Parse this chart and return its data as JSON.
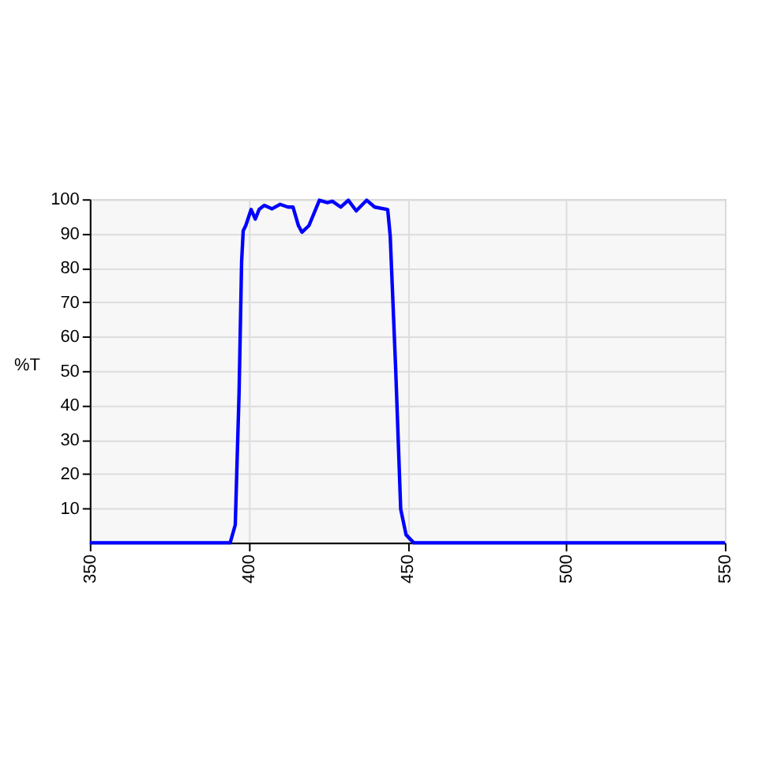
{
  "chart_data": {
    "type": "line",
    "ylabel": "%T",
    "x": [
      350,
      394.2,
      395.8,
      397,
      397.8,
      398.3,
      399.1,
      400.8,
      402.1,
      403.3,
      404.9,
      407.4,
      409.9,
      412.4,
      414,
      415.7,
      416.8,
      419,
      422.3,
      424.8,
      426.4,
      429,
      431.4,
      433.9,
      437.2,
      439.7,
      443.8,
      444.6,
      446.3,
      447.9,
      449.6,
      452,
      550
    ],
    "series": [
      {
        "color": "#0000ff",
        "values": [
          0,
          0,
          5.2,
          43.6,
          81.7,
          90.8,
          92.3,
          97,
          94.2,
          97,
          98.2,
          97.2,
          98.5,
          97.7,
          97.7,
          92.3,
          90.4,
          92.3,
          99.7,
          99,
          99.4,
          97.7,
          99.7,
          96.6,
          99.7,
          97.7,
          97,
          89.3,
          51,
          9.8,
          2.3,
          0,
          0
        ]
      }
    ],
    "xlim": [
      350,
      550
    ],
    "xticks": [
      350,
      400,
      450,
      500,
      550
    ],
    "ylim": [
      0,
      100
    ],
    "yticks": [
      10,
      20,
      30,
      40,
      50,
      60,
      70,
      80,
      90,
      100
    ],
    "grid": true,
    "legend": false,
    "marker": "none",
    "line_style": "solid"
  }
}
